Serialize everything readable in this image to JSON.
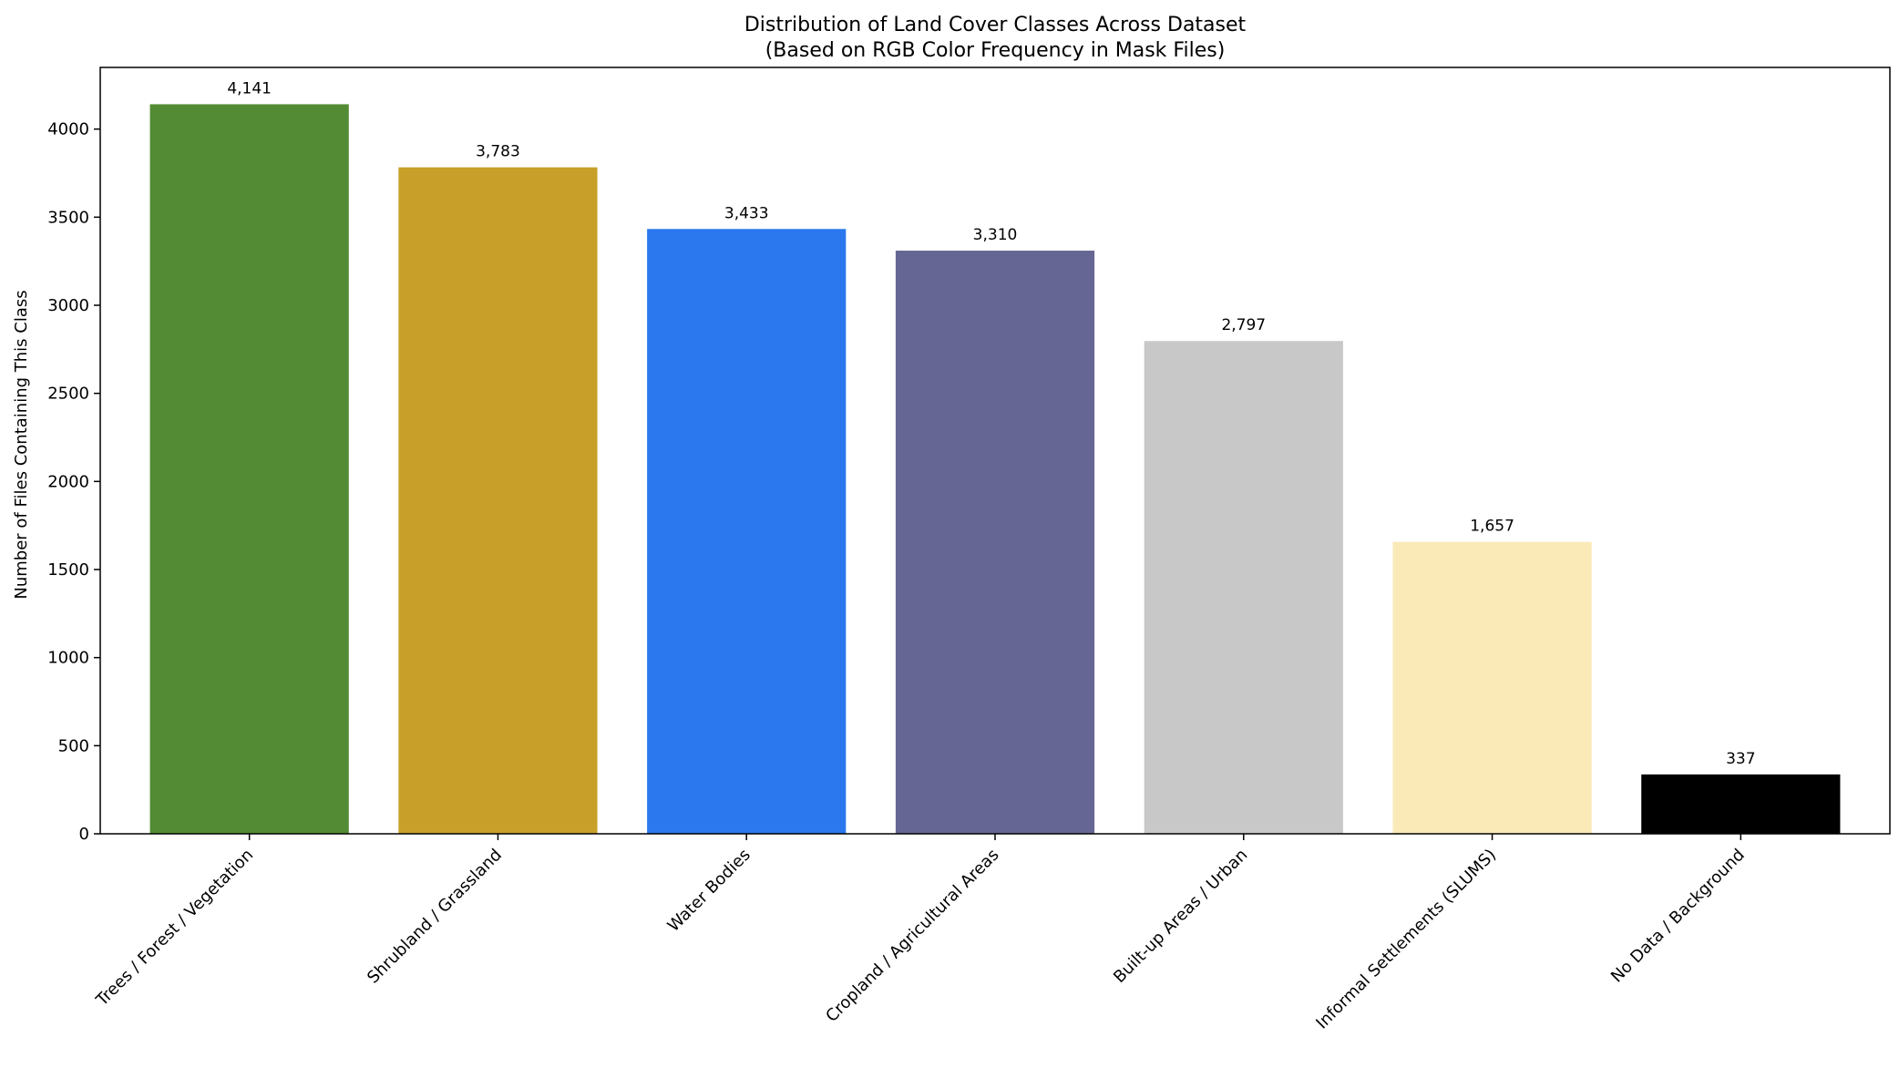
{
  "chart_data": {
    "type": "bar",
    "title": "Distribution of Land Cover Classes Across Dataset",
    "subtitle": "(Based on RGB Color Frequency in Mask Files)",
    "xlabel": "",
    "ylabel": "Number of Files Containing This Class",
    "ylim": [
      0,
      4350
    ],
    "yticks": [
      0,
      500,
      1000,
      1500,
      2000,
      2500,
      3000,
      3500,
      4000
    ],
    "ytick_labels": [
      "0",
      "500",
      "1000",
      "1500",
      "2000",
      "2500",
      "3000",
      "3500",
      "4000"
    ],
    "grid": false,
    "categories": [
      "Trees / Forest / Vegetation",
      "Shrubland / Grassland",
      "Water Bodies",
      "Cropland / Agricultural Areas",
      "Built-up Areas / Urban",
      "Informal Settlements (SLUMS)",
      "No Data / Background"
    ],
    "values": [
      4141,
      3783,
      3433,
      3310,
      2797,
      1657,
      337
    ],
    "data_labels": [
      "4,141",
      "3,783",
      "3,433",
      "3,310",
      "2,797",
      "1,657",
      "337"
    ],
    "colors": [
      "#528b33",
      "#c8a029",
      "#2b78ee",
      "#666694",
      "#c8c8c8",
      "#faeab8",
      "#000000"
    ]
  }
}
